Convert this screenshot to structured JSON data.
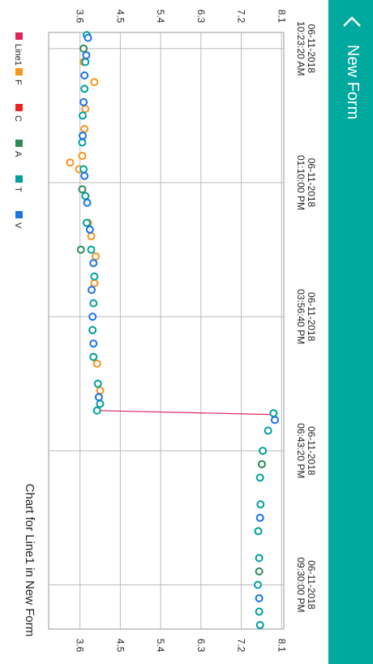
{
  "header": {
    "title": "New Form"
  },
  "chart_data": {
    "type": "scatter",
    "title": "Chart for Line1 in New Form",
    "xlim": [
      -0.12,
      4.33
    ],
    "xticks": [
      {
        "value": 0,
        "label": "06-11-2018\n10:23:20 AM"
      },
      {
        "value": 1,
        "label": "06-11-2018\n01:10:00 PM"
      },
      {
        "value": 2,
        "label": "06-11-2018\n03:56:40 PM"
      },
      {
        "value": 3,
        "label": "06-11-2018\n06:43:20 PM"
      },
      {
        "value": 4,
        "label": "06-11-2018\n09:30:00 PM"
      }
    ],
    "ylim": [
      2.9,
      8.15
    ],
    "yticks": [
      3.6,
      4.5,
      5.4,
      6.3,
      7.2,
      8.1
    ],
    "grid": true,
    "series": [
      {
        "name": "Line1",
        "color": "#e0245e",
        "x": [
          2.7,
          2.73
        ],
        "values": [
          4.0,
          7.92
        ]
      },
      {
        "name": "F",
        "color": "#f7941d",
        "x": [
          0.1,
          0.25,
          0.45,
          0.6,
          0.8,
          0.85,
          0.9,
          1.1,
          1.3,
          1.4,
          1.55,
          1.75,
          2.1,
          2.35,
          2.55
        ],
        "values": [
          3.68,
          3.92,
          3.72,
          3.7,
          3.65,
          3.38,
          3.58,
          3.72,
          3.78,
          3.85,
          3.95,
          3.92,
          3.88,
          3.98,
          4.05
        ]
      },
      {
        "name": "C",
        "color": "#ee2222",
        "x": [],
        "values": []
      },
      {
        "name": "A",
        "color": "#2e8b57",
        "x": [
          0.0,
          1.05,
          1.5,
          3.1,
          3.9
        ],
        "values": [
          3.68,
          3.65,
          3.62,
          7.66,
          7.6
        ]
      },
      {
        "name": "T",
        "color": "#00a0a0",
        "x": [
          -0.1,
          0.1,
          0.3,
          0.5,
          0.7,
          0.9,
          1.1,
          1.3,
          1.5,
          1.7,
          1.9,
          2.1,
          2.3,
          2.5,
          2.65,
          2.7,
          2.72,
          2.85,
          3.0,
          3.2,
          3.4,
          3.6,
          3.8,
          4.0,
          4.2,
          4.3
        ],
        "values": [
          3.75,
          3.72,
          3.7,
          3.66,
          3.65,
          3.68,
          3.72,
          3.75,
          3.85,
          3.92,
          3.9,
          3.88,
          3.9,
          4.0,
          4.05,
          3.98,
          7.92,
          7.8,
          7.68,
          7.62,
          7.63,
          7.58,
          7.6,
          7.57,
          7.6,
          7.62
        ]
      },
      {
        "name": "V",
        "color": "#1a73e8",
        "x": [
          -0.08,
          0.05,
          0.2,
          0.4,
          0.65,
          0.95,
          1.15,
          1.35,
          1.6,
          1.8,
          2.0,
          2.2,
          2.6,
          2.77,
          3.5,
          4.1
        ],
        "values": [
          3.78,
          3.74,
          3.7,
          3.68,
          3.66,
          3.7,
          3.76,
          3.82,
          3.9,
          3.86,
          3.88,
          3.9,
          4.02,
          7.95,
          7.62,
          7.6
        ]
      }
    ]
  }
}
